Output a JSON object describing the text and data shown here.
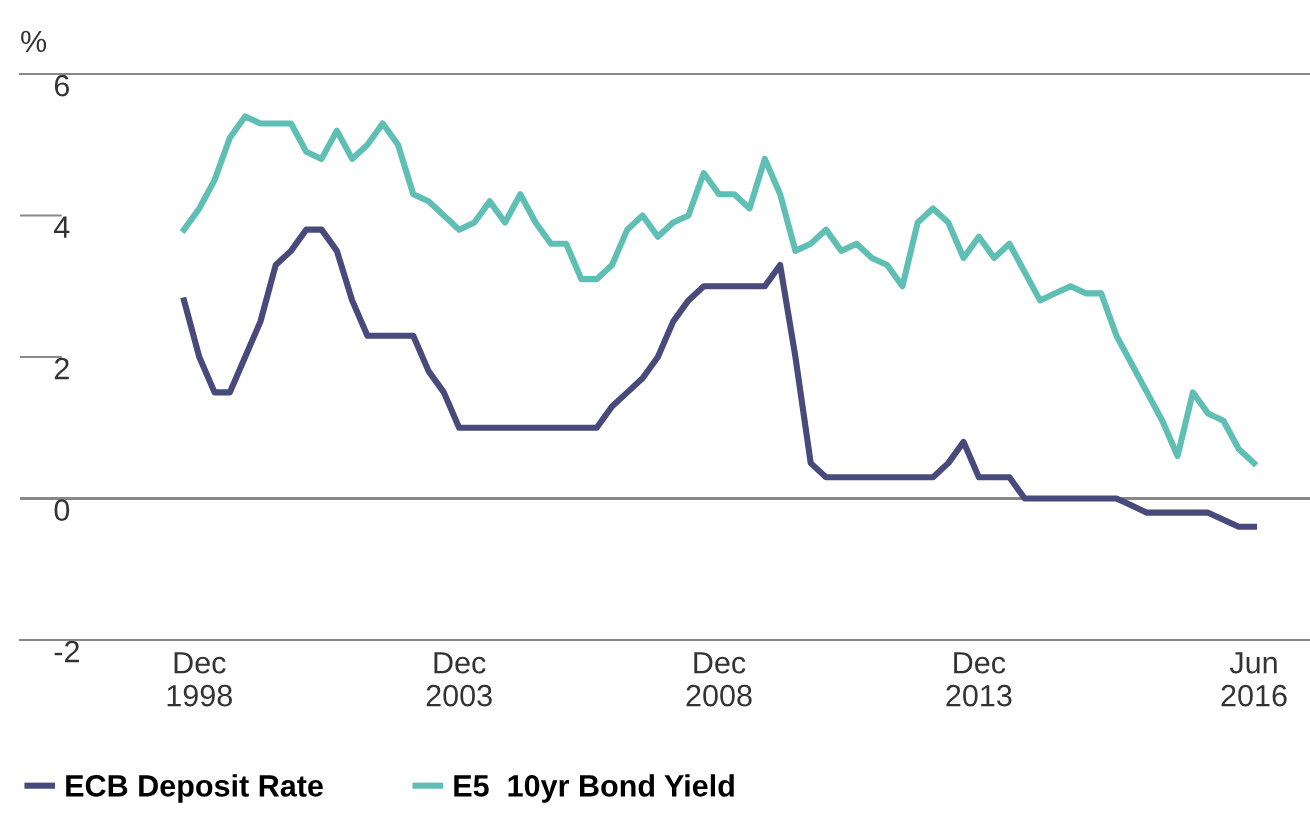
{
  "chart_data": {
    "type": "line",
    "ylabel": "%",
    "categories": [
      null,
      "Dec\n1998",
      null,
      null,
      null,
      null,
      null,
      null,
      null,
      null,
      null,
      null,
      null,
      null,
      null,
      null,
      null,
      null,
      "Dec\n2003",
      null,
      null,
      null,
      null,
      null,
      null,
      null,
      null,
      null,
      null,
      null,
      null,
      null,
      null,
      null,
      null,
      "Dec\n2008",
      null,
      null,
      null,
      null,
      null,
      null,
      null,
      null,
      null,
      null,
      null,
      null,
      null,
      null,
      null,
      null,
      "Dec\n2013",
      null,
      null,
      null,
      null,
      null,
      null,
      null,
      null,
      null,
      null,
      null,
      null,
      null,
      null,
      null,
      null,
      null,
      "Jun\n2016"
    ],
    "series": [
      {
        "name": "ECB Deposit Rate",
        "color": "#474a7a",
        "values": [
          2.8,
          2.0,
          1.5,
          1.5,
          2.0,
          2.5,
          3.3,
          3.5,
          3.8,
          3.8,
          3.5,
          2.8,
          2.3,
          2.3,
          2.3,
          2.3,
          1.8,
          1.5,
          1.0,
          1.0,
          1.0,
          1.0,
          1.0,
          1.0,
          1.0,
          1.0,
          1.0,
          1.0,
          1.3,
          1.5,
          1.7,
          2.0,
          2.5,
          2.8,
          3.0,
          3.0,
          3.0,
          3.0,
          3.0,
          3.3,
          2.0,
          0.5,
          0.3,
          0.3,
          0.3,
          0.3,
          0.3,
          0.3,
          0.3,
          0.3,
          0.5,
          0.8,
          0.3,
          0.3,
          0.3,
          0.0,
          0.0,
          0.0,
          0.0,
          0.0,
          0.0,
          0.0,
          -0.1,
          -0.2,
          -0.2,
          -0.2,
          -0.2,
          -0.2,
          -0.3,
          -0.4,
          -0.4
        ]
      },
      {
        "name": "E5  10yr Bond Yield",
        "color": "#5fbfb4",
        "values": [
          3.8,
          4.1,
          4.5,
          5.1,
          5.4,
          5.3,
          5.3,
          5.3,
          4.9,
          4.8,
          5.2,
          4.8,
          5.0,
          5.3,
          5.0,
          4.3,
          4.2,
          4.0,
          3.8,
          3.9,
          4.2,
          3.9,
          4.3,
          3.9,
          3.6,
          3.6,
          3.1,
          3.1,
          3.3,
          3.8,
          4.0,
          3.7,
          3.9,
          4.0,
          4.6,
          4.3,
          4.3,
          4.1,
          4.8,
          4.3,
          3.5,
          3.6,
          3.8,
          3.5,
          3.6,
          3.4,
          3.3,
          3.0,
          3.9,
          4.1,
          3.9,
          3.4,
          3.7,
          3.4,
          3.6,
          3.2,
          2.8,
          2.9,
          3.0,
          2.9,
          2.9,
          2.3,
          1.9,
          1.5,
          1.1,
          0.6,
          1.5,
          1.2,
          1.1,
          0.7,
          0.5
        ]
      }
    ],
    "ylim": [
      -2,
      6
    ],
    "yticks": [
      -2,
      0,
      2,
      4,
      6
    ],
    "ref_lines": [
      {
        "axis": "y",
        "value": 0,
        "color": "#888888"
      }
    ],
    "legend": "bottom left",
    "grid": false
  }
}
